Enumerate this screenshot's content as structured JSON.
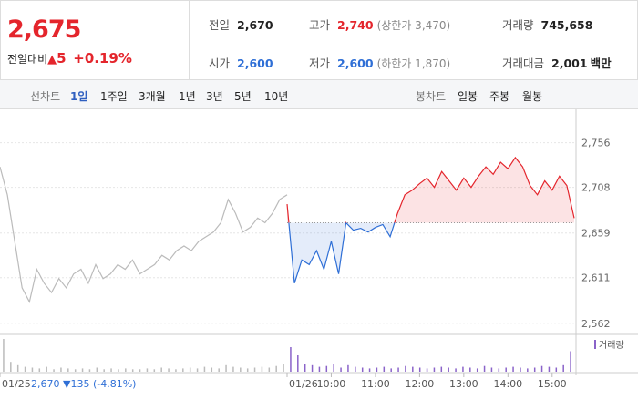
{
  "header": {
    "price": "2,675",
    "change_label": "전일대비",
    "change": "5",
    "change_pct": "+0.19%",
    "info": [
      [
        {
          "label": "전일",
          "value": "2,670"
        },
        {
          "label": "고가",
          "value": "2,740",
          "note": "(상한가 3,470)"
        },
        {
          "label": "거래량",
          "value": "745,658"
        }
      ],
      [
        {
          "label": "시가",
          "value": "2,600"
        },
        {
          "label": "저가",
          "value": "2,600",
          "note": "(하한가 1,870)"
        },
        {
          "label": "거래대금",
          "value": "2,001",
          "unit": "백만"
        }
      ]
    ]
  },
  "tabs": {
    "line_label": "선차트",
    "line_tabs": [
      "1일",
      "1주일",
      "3개월",
      "1년",
      "3년",
      "5년",
      "10년"
    ],
    "candle_label": "봉차트",
    "candle_tabs": [
      "일봉",
      "주봉",
      "월봉"
    ]
  },
  "chart_data": {
    "type": "line",
    "baseline": 2670,
    "ylim": [
      2552,
      2784
    ],
    "yticks": [
      {
        "value": 2562,
        "label": "2,562"
      },
      {
        "value": 2611,
        "label": "2,611"
      },
      {
        "value": 2659,
        "label": "2,659"
      },
      {
        "value": 2708,
        "label": "2,708"
      },
      {
        "value": 2756,
        "label": "2,756"
      }
    ],
    "xlim": [
      0,
      780
    ],
    "xticks": [
      {
        "value": 0,
        "label": "01/25"
      },
      {
        "value": 390,
        "label": "01/26"
      },
      {
        "value": 450,
        "label": "10:00"
      },
      {
        "value": 510,
        "label": "11:00"
      },
      {
        "value": 570,
        "label": "12:00"
      },
      {
        "value": 630,
        "label": "13:00"
      },
      {
        "value": 690,
        "label": "14:00"
      },
      {
        "value": 750,
        "label": "15:00"
      }
    ],
    "prev_day_info": {
      "close": "2,670",
      "change": "▼135",
      "pct": "(-4.81%)"
    },
    "series": [
      {
        "color": "#bbbbbb",
        "x": [
          0,
          10,
          20,
          30,
          40,
          50,
          60,
          70,
          80,
          90,
          100,
          110,
          120,
          130,
          140,
          150,
          160,
          170,
          180,
          190,
          200,
          210,
          220,
          230,
          240,
          250,
          260,
          270,
          280,
          290,
          300,
          310,
          320,
          330,
          340,
          350,
          360,
          370,
          380,
          390
        ],
        "values": [
          2730,
          2700,
          2650,
          2600,
          2585,
          2620,
          2605,
          2595,
          2610,
          2600,
          2615,
          2620,
          2605,
          2625,
          2610,
          2615,
          2625,
          2620,
          2630,
          2615,
          2620,
          2625,
          2635,
          2630,
          2640,
          2645,
          2640,
          2650,
          2655,
          2660,
          2670,
          2695,
          2680,
          2660,
          2665,
          2675,
          2670,
          2680,
          2695,
          2700
        ]
      },
      {
        "color": "#e4252c",
        "down_color": "#2f6fd6",
        "x": [
          390,
          400,
          410,
          420,
          430,
          440,
          450,
          460,
          470,
          480,
          490,
          500,
          510,
          520,
          530,
          540,
          550,
          560,
          570,
          580,
          590,
          600,
          610,
          620,
          630,
          640,
          650,
          660,
          670,
          680,
          690,
          700,
          710,
          720,
          730,
          740,
          750,
          760,
          770,
          780
        ],
        "values": [
          2690,
          2605,
          2630,
          2625,
          2640,
          2620,
          2650,
          2615,
          2670,
          2662,
          2664,
          2660,
          2665,
          2668,
          2655,
          2680,
          2700,
          2705,
          2712,
          2718,
          2708,
          2725,
          2715,
          2705,
          2718,
          2708,
          2720,
          2730,
          2722,
          2735,
          2728,
          2740,
          2730,
          2710,
          2700,
          2715,
          2705,
          2720,
          2710,
          2675
        ]
      }
    ],
    "volume": {
      "name": "거래량",
      "color": "#8a63c9",
      "values": [
        40,
        12,
        8,
        6,
        5,
        4,
        6,
        3,
        5,
        4,
        3,
        4,
        3,
        5,
        3,
        4,
        3,
        4,
        3,
        3,
        4,
        3,
        5,
        4,
        3,
        4,
        5,
        4,
        6,
        5,
        4,
        8,
        6,
        5,
        4,
        5,
        6,
        5,
        7,
        9,
        30,
        20,
        10,
        8,
        6,
        7,
        9,
        5,
        8,
        6,
        5,
        4,
        5,
        6,
        4,
        5,
        7,
        6,
        5,
        4,
        5,
        6,
        5,
        4,
        6,
        5,
        4,
        7,
        5,
        4,
        5,
        6,
        5,
        4,
        5,
        7,
        6,
        5,
        8,
        25
      ]
    }
  }
}
